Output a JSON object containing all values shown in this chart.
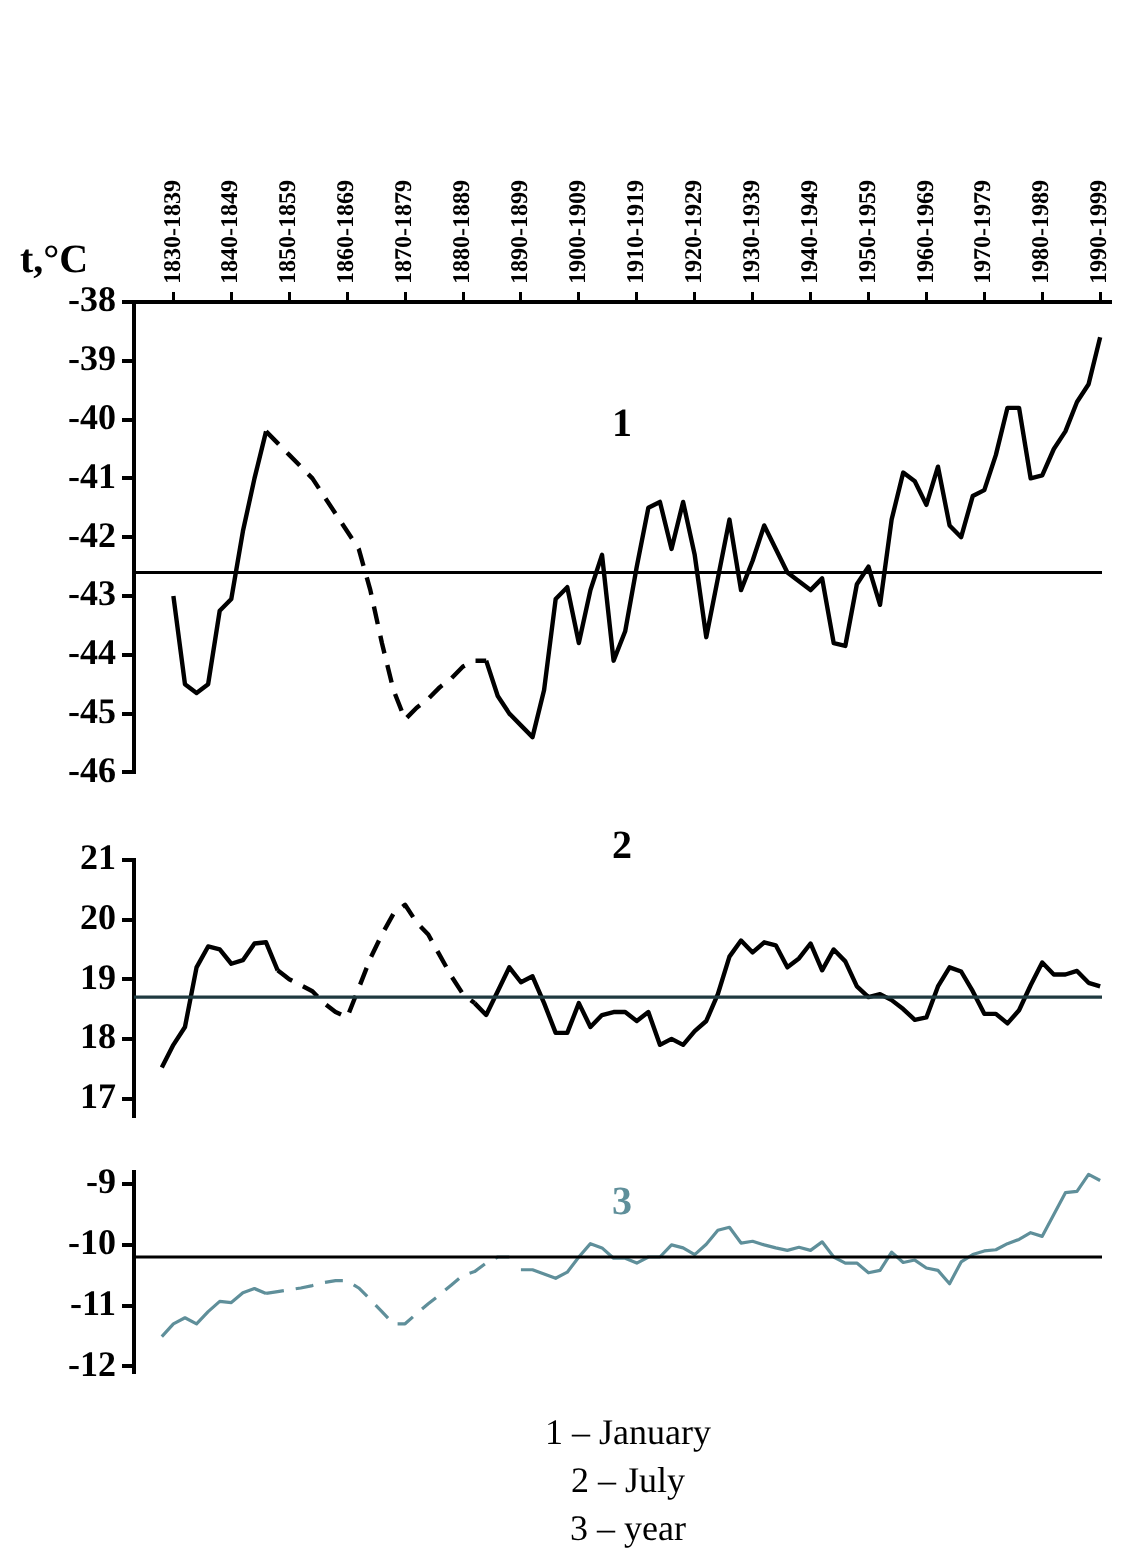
{
  "chart_data": [
    {
      "type": "line",
      "ylabel": "t,°C",
      "annotations": [
        "1"
      ],
      "categories": [
        null,
        "1830-1839",
        null,
        null,
        null,
        null,
        "1840-1849",
        null,
        null,
        null,
        null,
        "1850-1859",
        null,
        null,
        null,
        null,
        "1860-1869",
        null,
        null,
        null,
        null,
        "1870-1879",
        null,
        null,
        null,
        null,
        "1880-1889",
        null,
        null,
        null,
        null,
        "1890-1899",
        null,
        null,
        null,
        null,
        "1900-1909",
        null,
        null,
        null,
        null,
        "1910-1919",
        null,
        null,
        null,
        null,
        "1920-1929",
        null,
        null,
        null,
        null,
        "1930-1939",
        null,
        null,
        null,
        null,
        "1940-1949",
        null,
        null,
        null,
        null,
        "1950-1959",
        null,
        null,
        null,
        null,
        "1960-1969",
        null,
        null,
        null,
        null,
        "1970-1979",
        null,
        null,
        null,
        null,
        "1980-1989",
        null,
        null,
        null,
        null,
        "1990-1999"
      ],
      "ylim": [
        -46,
        -38
      ],
      "yticks": [
        -46,
        -45,
        -44,
        -43,
        -42,
        -41,
        -40,
        -39,
        -38
      ],
      "ref_lines": [
        {
          "axis": "y",
          "value": -42.6,
          "color": "#000000"
        }
      ],
      "series": [
        {
          "color": "#000000",
          "line_style": "solid",
          "values": [
            null,
            -43.0,
            -44.5,
            -44.65,
            -44.5,
            -43.25,
            -43.05,
            -41.9,
            -41.0,
            -40.2,
            null,
            null,
            null,
            null,
            null,
            null,
            null,
            null,
            null,
            null,
            null,
            null,
            null,
            null,
            null,
            null,
            null,
            null,
            null,
            null,
            null,
            null,
            null,
            null,
            null,
            null,
            null,
            null,
            null,
            null,
            null,
            null,
            null,
            null,
            null,
            null,
            null,
            null,
            null,
            null,
            null,
            null,
            null,
            null,
            null,
            null,
            null,
            null,
            null,
            null,
            null,
            null,
            null,
            null,
            null,
            null,
            null,
            null,
            null,
            null,
            null,
            null,
            null,
            null,
            null,
            null,
            null,
            null,
            null,
            null,
            null,
            null
          ]
        },
        {
          "color": "#000000",
          "line_style": "dashed",
          "values": [
            null,
            null,
            null,
            null,
            null,
            null,
            null,
            null,
            null,
            -40.2,
            -40.4,
            -40.6,
            -40.8,
            -41.0,
            -41.3,
            -41.6,
            -41.9,
            -42.2,
            -42.9,
            -43.8,
            -44.6,
            -45.1,
            -44.9,
            -44.75,
            -44.55,
            -44.4,
            -44.2,
            -44.1,
            -44.1,
            null,
            null,
            null,
            null,
            null,
            null,
            null,
            null,
            null,
            null,
            null,
            null,
            null,
            null,
            null,
            null,
            null,
            null,
            null,
            null,
            null,
            null,
            null,
            null,
            null,
            null,
            null,
            null,
            null,
            null,
            null,
            null,
            null,
            null,
            null,
            null,
            null,
            null,
            null,
            null,
            null,
            null,
            null,
            null,
            null,
            null,
            null,
            null,
            null,
            null,
            null,
            null,
            null
          ]
        },
        {
          "color": "#000000",
          "line_style": "solid",
          "values": [
            null,
            null,
            null,
            null,
            null,
            null,
            null,
            null,
            null,
            null,
            null,
            null,
            null,
            null,
            null,
            null,
            null,
            null,
            null,
            null,
            null,
            null,
            null,
            null,
            null,
            null,
            null,
            null,
            -44.1,
            -44.7,
            -45.0,
            -45.2,
            -45.4,
            -44.6,
            -43.05,
            -42.85,
            -43.8,
            -42.9,
            -42.3,
            -44.1,
            -43.6,
            -42.5,
            -41.5,
            -41.4,
            -42.2,
            -41.4,
            -42.3,
            -43.7,
            -42.7,
            -41.7,
            -42.9,
            -42.4,
            -41.8,
            -42.2,
            -42.6,
            -42.75,
            -42.9,
            -42.7,
            -43.8,
            -43.85,
            -42.8,
            -42.5,
            -43.15,
            -41.7,
            -40.9,
            -41.05,
            -41.45,
            -40.8,
            -41.8,
            -42.0,
            -41.3,
            -41.2,
            -40.6,
            -39.8,
            -39.8,
            -41.0,
            -40.95,
            -40.5,
            -40.2,
            -39.7,
            -39.4,
            -38.6
          ]
        }
      ]
    },
    {
      "type": "line",
      "annotations": [
        "2"
      ],
      "tick_labels": "y",
      "ylim": [
        16.7,
        21
      ],
      "yticks": [
        17,
        18,
        19,
        20,
        21
      ],
      "ref_lines": [
        {
          "axis": "y",
          "value": 18.7,
          "color": "#1f3a40"
        }
      ],
      "series": [
        {
          "color": "#000000",
          "line_style": "solid",
          "values": [
            17.52,
            17.9,
            18.2,
            19.2,
            19.55,
            19.5,
            19.26,
            19.32,
            19.6,
            19.62,
            19.15,
            null,
            null,
            null,
            null,
            null,
            null,
            null,
            null,
            null,
            null,
            null,
            null,
            null,
            null,
            null,
            null,
            null,
            null,
            null,
            null,
            null,
            null,
            null,
            null,
            null,
            null,
            null,
            null,
            null,
            null,
            null,
            null,
            null,
            null,
            null,
            null,
            null,
            null,
            null,
            null,
            null,
            null,
            null,
            null,
            null,
            null,
            null,
            null,
            null,
            null,
            null,
            null,
            null,
            null,
            null,
            null,
            null,
            null,
            null,
            null,
            null,
            null,
            null,
            null,
            null,
            null,
            null,
            null,
            null,
            null,
            null
          ]
        },
        {
          "color": "#000000",
          "line_style": "dashed",
          "values": [
            null,
            null,
            null,
            null,
            null,
            null,
            null,
            null,
            null,
            null,
            19.15,
            19.0,
            18.9,
            18.8,
            18.6,
            18.45,
            18.36,
            18.85,
            19.35,
            19.75,
            20.1,
            20.25,
            19.95,
            19.75,
            19.4,
            19.05,
            18.75,
            18.6,
            null,
            null,
            null,
            null,
            null,
            null,
            null,
            null,
            null,
            null,
            null,
            null,
            null,
            null,
            null,
            null,
            null,
            null,
            null,
            null,
            null,
            null,
            null,
            null,
            null,
            null,
            null,
            null,
            null,
            null,
            null,
            null,
            null,
            null,
            null,
            null,
            null,
            null,
            null,
            null,
            null,
            null,
            null,
            null,
            null,
            null,
            null,
            null,
            null,
            null,
            null,
            null,
            null,
            null
          ]
        },
        {
          "color": "#000000",
          "line_style": "solid",
          "values": [
            null,
            null,
            null,
            null,
            null,
            null,
            null,
            null,
            null,
            null,
            null,
            null,
            null,
            null,
            null,
            null,
            null,
            null,
            null,
            null,
            null,
            null,
            null,
            null,
            null,
            null,
            null,
            18.6,
            18.4,
            18.8,
            19.2,
            18.95,
            19.05,
            18.6,
            18.1,
            18.1,
            18.6,
            18.2,
            18.4,
            18.45,
            18.45,
            18.3,
            18.45,
            17.9,
            18.0,
            17.9,
            18.13,
            18.3,
            18.75,
            19.38,
            19.65,
            19.45,
            19.62,
            19.57,
            19.2,
            19.35,
            19.6,
            19.15,
            19.5,
            19.3,
            18.88,
            18.7,
            18.75,
            18.65,
            18.5,
            18.32,
            18.36,
            18.88,
            19.2,
            19.13,
            18.8,
            18.42,
            18.42,
            18.26,
            18.48,
            18.9,
            19.28,
            19.08,
            19.08,
            19.14,
            18.94,
            18.88
          ]
        }
      ]
    },
    {
      "type": "line",
      "annotations": [
        "3",
        "1 – January",
        "2 – July",
        "3 – year"
      ],
      "tick_labels": "y",
      "ylim": [
        -12.1,
        -8.8
      ],
      "yticks": [
        -12,
        -11,
        -10,
        -9
      ],
      "ref_lines": [
        {
          "axis": "y",
          "value": -10.2,
          "color": "#000000"
        }
      ],
      "series": [
        {
          "color": "#5f8f9a",
          "line_style": "solid",
          "values": [
            -11.51,
            -11.3,
            -11.2,
            -11.3,
            -11.1,
            -10.93,
            -10.95,
            -10.79,
            -10.72,
            -10.8,
            null,
            null,
            null,
            null,
            null,
            null,
            null,
            null,
            null,
            null,
            null,
            null,
            null,
            null,
            null,
            null,
            null,
            null,
            null,
            null,
            null,
            null,
            null,
            null,
            null,
            null,
            null,
            null,
            null,
            null,
            null,
            null,
            null,
            null,
            null,
            null,
            null,
            null,
            null,
            null,
            null,
            null,
            null,
            null,
            null,
            null,
            null,
            null,
            null,
            null,
            null,
            null,
            null,
            null,
            null,
            null,
            null,
            null,
            null,
            null,
            null,
            null,
            null,
            null,
            null,
            null,
            null,
            null,
            null,
            null,
            null,
            null
          ]
        },
        {
          "color": "#5f8f9a",
          "line_style": "dashed",
          "values": [
            null,
            null,
            null,
            null,
            null,
            null,
            null,
            null,
            null,
            -10.8,
            -10.77,
            -10.74,
            -10.71,
            -10.67,
            -10.62,
            -10.59,
            -10.59,
            -10.71,
            -10.9,
            -11.1,
            -11.3,
            -11.3,
            -11.13,
            -10.97,
            -10.82,
            -10.66,
            -10.5,
            -10.44,
            -10.3,
            -10.2,
            -10.2,
            null,
            null,
            null,
            null,
            null,
            null,
            null,
            null,
            null,
            null,
            null,
            null,
            null,
            null,
            null,
            null,
            null,
            null,
            null,
            null,
            null,
            null,
            null,
            null,
            null,
            null,
            null,
            null,
            null,
            null,
            null,
            null,
            null,
            null,
            null,
            null,
            null,
            null,
            null,
            null,
            null,
            null,
            null,
            null,
            null,
            null,
            null,
            null,
            null,
            null,
            null
          ]
        },
        {
          "color": "#5f8f9a",
          "line_style": "solid",
          "values": [
            null,
            null,
            null,
            null,
            null,
            null,
            null,
            null,
            null,
            null,
            null,
            null,
            null,
            null,
            null,
            null,
            null,
            null,
            null,
            null,
            null,
            null,
            null,
            null,
            null,
            null,
            null,
            null,
            null,
            null,
            null,
            -10.41,
            -10.41,
            -10.48,
            -10.55,
            -10.45,
            -10.2,
            -9.98,
            -10.05,
            -10.22,
            -10.22,
            -10.3,
            -10.2,
            -10.2,
            -10.0,
            -10.05,
            -10.16,
            -9.99,
            -9.76,
            -9.71,
            -9.97,
            -9.94,
            -10.0,
            -10.05,
            -10.09,
            -10.04,
            -10.09,
            -9.95,
            -10.2,
            -10.3,
            -10.3,
            -10.46,
            -10.42,
            -10.12,
            -10.29,
            -10.25,
            -10.38,
            -10.42,
            -10.64,
            -10.28,
            -10.16,
            -10.1,
            -10.08,
            -9.98,
            -9.91,
            -9.8,
            -9.86,
            -9.5,
            -9.14,
            -9.12,
            -8.84,
            -8.94
          ]
        }
      ]
    }
  ]
}
